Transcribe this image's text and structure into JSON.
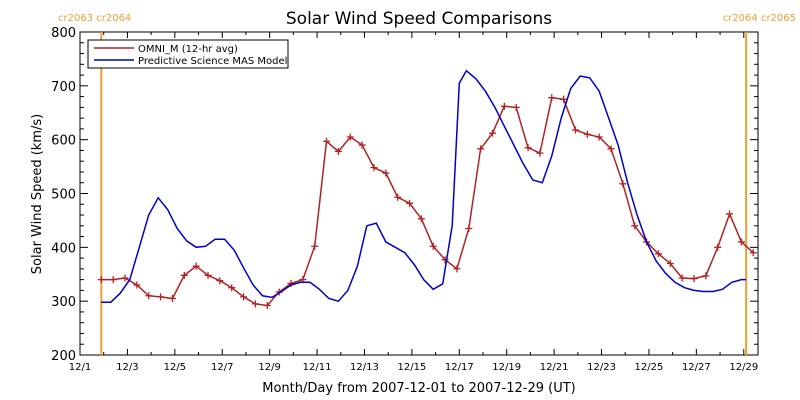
{
  "chart_data": {
    "type": "line",
    "title": "Solar Wind Speed Comparisons",
    "xlabel": "Month/Day from 2007-12-01 to 2007-12-29 (UT)",
    "ylabel": "Solar Wind Speed (km/s)",
    "ylim": [
      200,
      800
    ],
    "xlim_days": [
      0,
      28.6
    ],
    "x_ticks": [
      {
        "day": 0,
        "label": "12/1"
      },
      {
        "day": 2,
        "label": "12/3"
      },
      {
        "day": 4,
        "label": "12/5"
      },
      {
        "day": 6,
        "label": "12/7"
      },
      {
        "day": 8,
        "label": "12/9"
      },
      {
        "day": 10,
        "label": "12/11"
      },
      {
        "day": 12,
        "label": "12/13"
      },
      {
        "day": 14,
        "label": "12/15"
      },
      {
        "day": 16,
        "label": "12/17"
      },
      {
        "day": 18,
        "label": "12/19"
      },
      {
        "day": 20,
        "label": "12/21"
      },
      {
        "day": 22,
        "label": "12/23"
      },
      {
        "day": 24,
        "label": "12/25"
      },
      {
        "day": 26,
        "label": "12/27"
      },
      {
        "day": 28,
        "label": "12/29"
      }
    ],
    "y_ticks": [
      200,
      300,
      400,
      500,
      600,
      700,
      800
    ],
    "legend_position": "top-left",
    "grid": false,
    "carrington_markers": [
      {
        "day": 0.9,
        "label": "cr2063 cr2064",
        "color": "#e8a033",
        "label_side": "left"
      },
      {
        "day": 28.1,
        "label": "cr2064 cr2065",
        "color": "#e8a033",
        "label_side": "right"
      }
    ],
    "series": [
      {
        "name": "OMNI_M (12-hr avg)",
        "color": "#b22222",
        "markers": true,
        "x": [
          0.9,
          1.4,
          1.9,
          2.4,
          2.9,
          3.4,
          3.9,
          4.4,
          4.9,
          5.4,
          5.9,
          6.4,
          6.9,
          7.4,
          7.9,
          8.4,
          8.9,
          9.4,
          9.9,
          10.4,
          10.9,
          11.4,
          11.9,
          12.4,
          12.9,
          13.4,
          13.9,
          14.4,
          14.9,
          15.4,
          15.9,
          16.4,
          16.9,
          17.4,
          17.9,
          18.4,
          18.9,
          19.4,
          19.9,
          20.4,
          20.9,
          21.4,
          21.9,
          22.4,
          22.9,
          23.4,
          23.9,
          24.4,
          24.9,
          25.4,
          25.9,
          26.4,
          26.9,
          27.4,
          27.9,
          28.4
        ],
        "y": [
          340,
          340,
          343,
          330,
          310,
          308,
          305,
          348,
          365,
          348,
          338,
          325,
          308,
          295,
          292,
          317,
          333,
          340,
          402,
          597,
          578,
          605,
          590,
          548,
          538,
          493,
          482,
          453,
          402,
          377,
          360,
          435,
          583,
          612,
          662,
          660,
          585,
          575,
          678,
          675,
          618,
          610,
          605,
          583,
          518,
          440,
          410,
          388,
          370,
          343,
          342,
          347,
          400,
          462,
          410,
          390
        ]
      },
      {
        "name": "Predictive Science MAS Model",
        "color": "#0000cc",
        "markers": false,
        "x": [
          0.9,
          1.3,
          1.7,
          2.1,
          2.5,
          2.9,
          3.3,
          3.7,
          4.1,
          4.5,
          4.9,
          5.3,
          5.7,
          6.1,
          6.5,
          6.9,
          7.3,
          7.7,
          8.1,
          8.5,
          8.9,
          9.3,
          9.7,
          10.1,
          10.5,
          10.9,
          11.3,
          11.7,
          12.1,
          12.5,
          12.9,
          13.3,
          13.7,
          14.1,
          14.5,
          14.9,
          15.3,
          15.7,
          16.0,
          16.3,
          16.7,
          17.1,
          17.5,
          17.9,
          18.3,
          18.7,
          19.1,
          19.5,
          19.9,
          20.3,
          20.7,
          21.1,
          21.5,
          21.9,
          22.3,
          22.7,
          23.1,
          23.5,
          23.9,
          24.3,
          24.7,
          25.1,
          25.5,
          25.9,
          26.3,
          26.7,
          27.1,
          27.5,
          27.9,
          28.1
        ],
        "y": [
          298,
          298,
          315,
          340,
          400,
          460,
          492,
          470,
          435,
          412,
          400,
          402,
          415,
          415,
          395,
          362,
          330,
          310,
          307,
          318,
          330,
          335,
          335,
          322,
          305,
          300,
          320,
          365,
          440,
          445,
          410,
          400,
          390,
          368,
          340,
          322,
          332,
          440,
          705,
          728,
          713,
          690,
          660,
          625,
          590,
          555,
          525,
          520,
          570,
          640,
          695,
          718,
          715,
          690,
          640,
          590,
          520,
          460,
          410,
          375,
          352,
          335,
          325,
          320,
          318,
          318,
          322,
          335,
          340,
          340
        ]
      }
    ]
  }
}
